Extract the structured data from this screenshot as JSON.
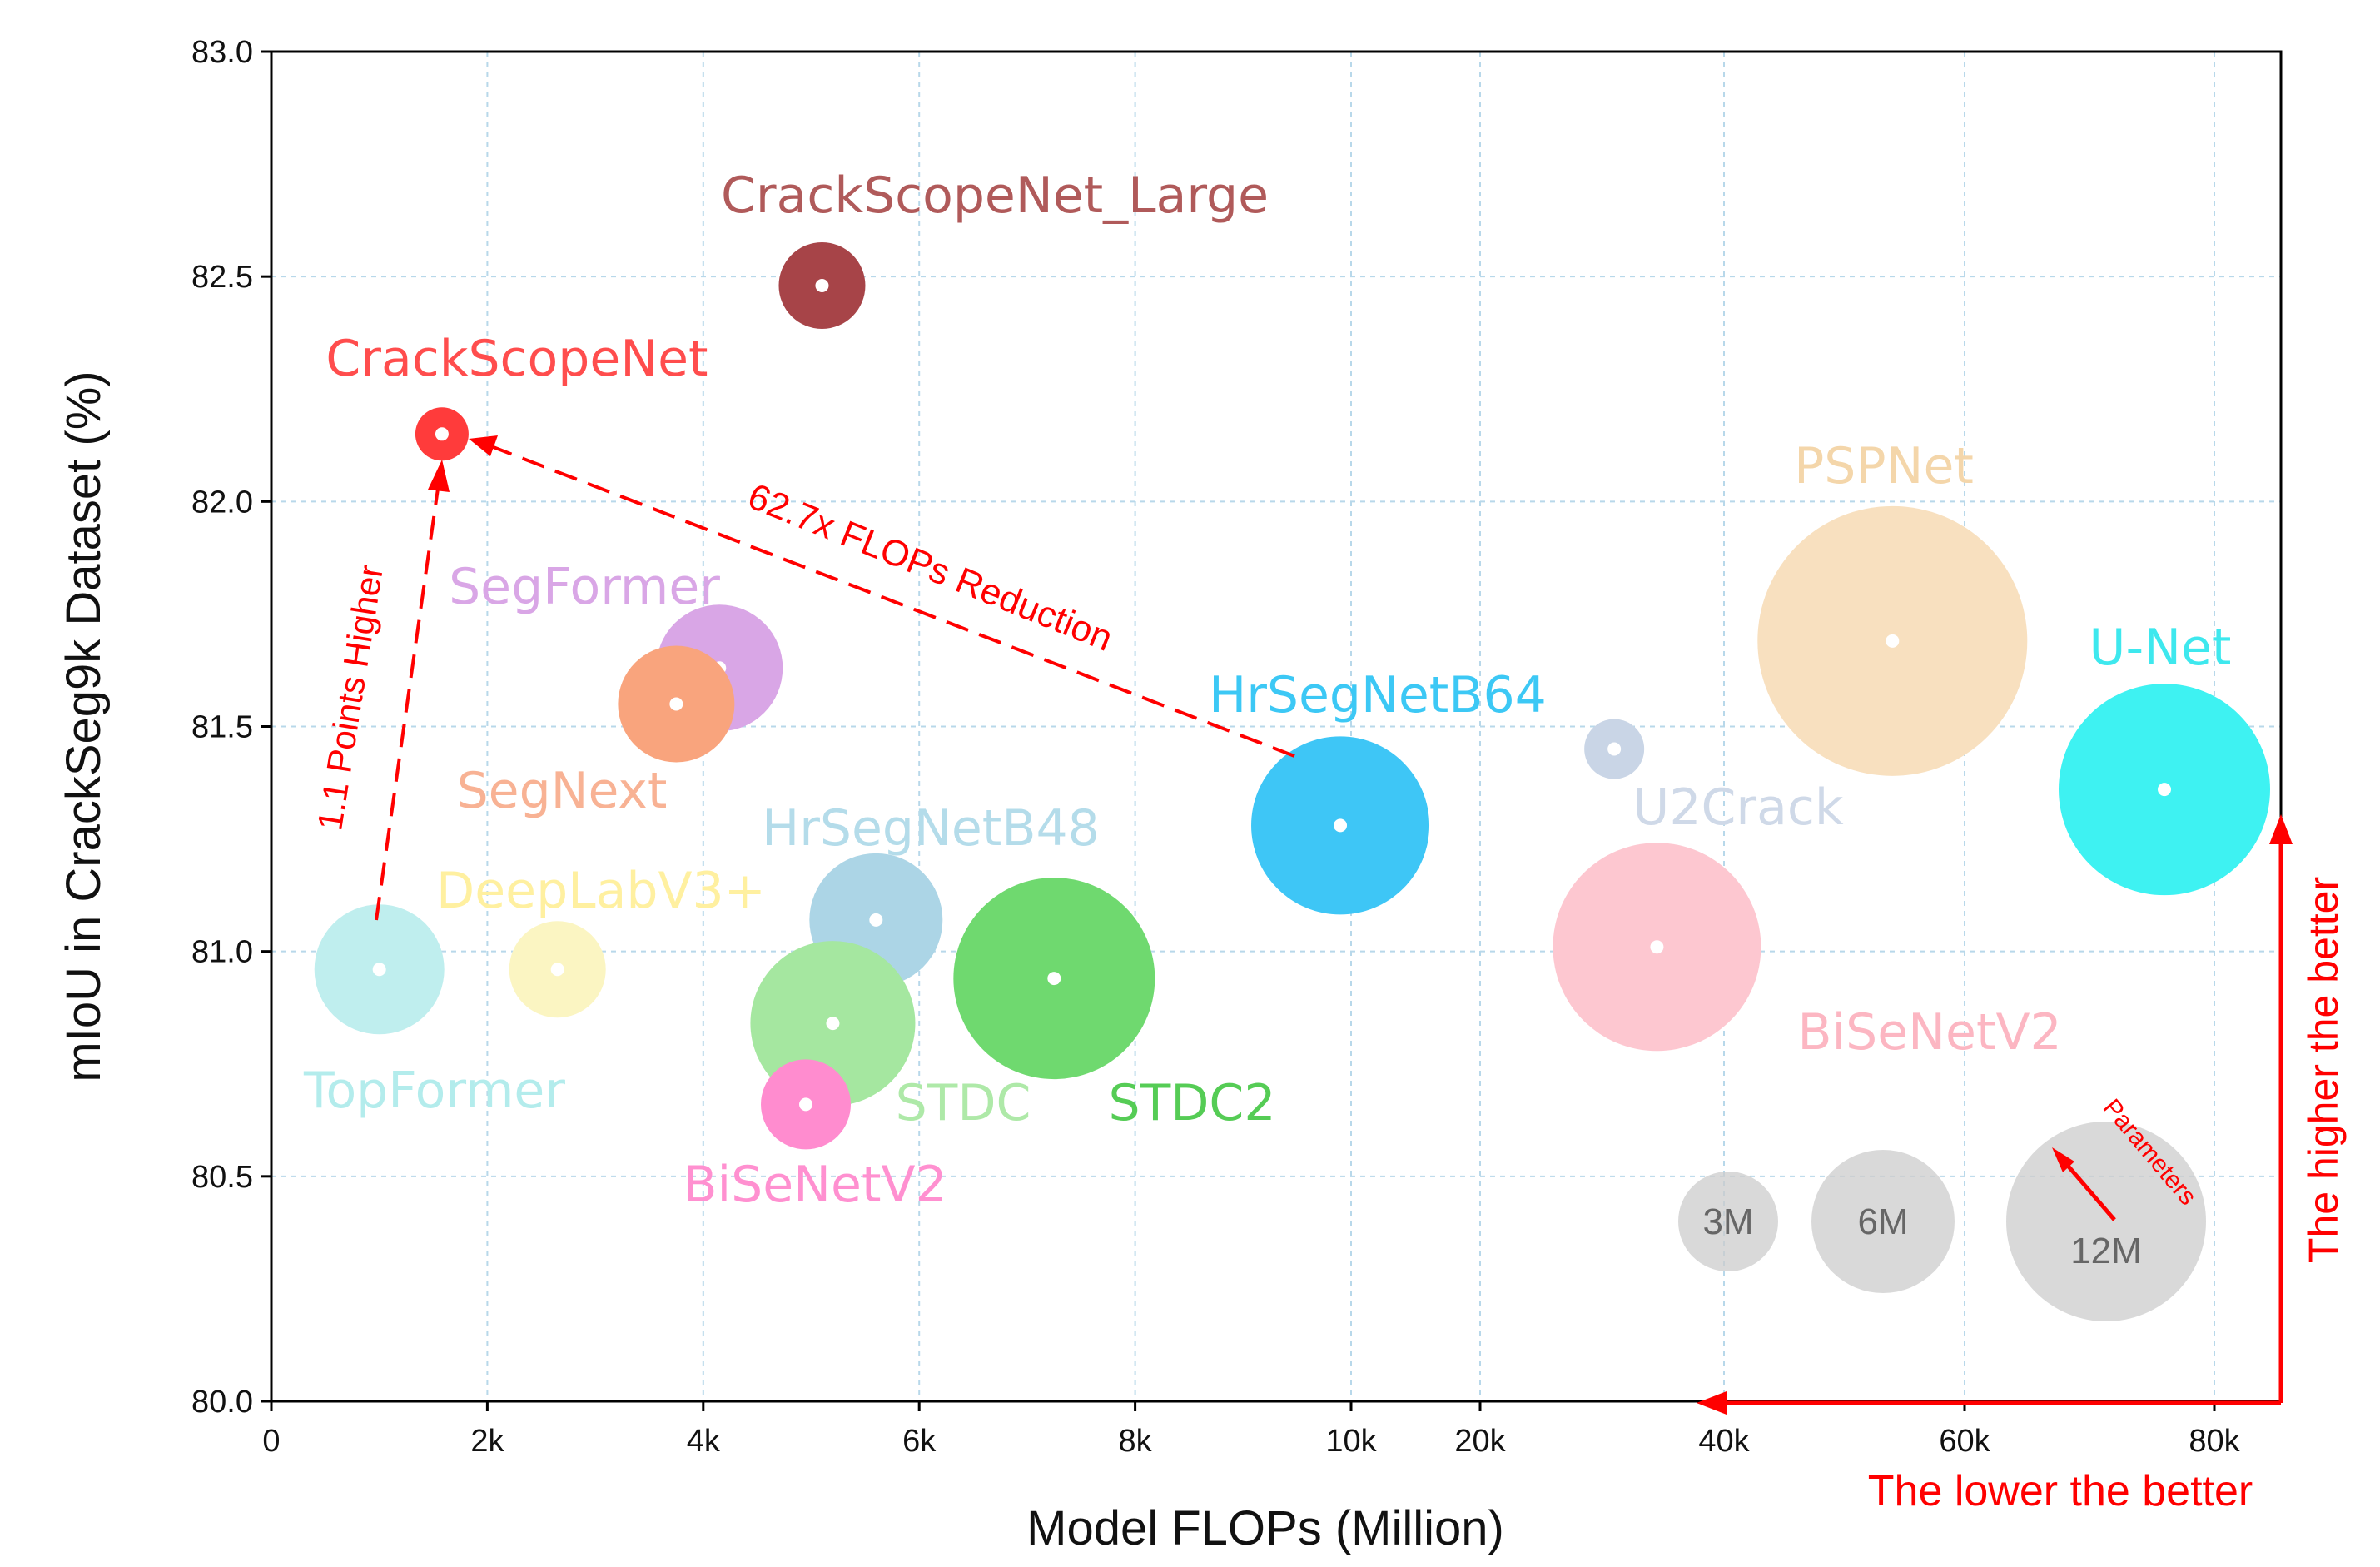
{
  "chart_data": {
    "type": "scatter",
    "subtype": "bubble",
    "xlabel": "Model FLOPs (Million)",
    "ylabel": "mIoU  in  CrackSeg9k  Dataset  (%)",
    "ylim": [
      80.0,
      83.0
    ],
    "y_ticks": [
      "80.0",
      "80.5",
      "81.0",
      "81.5",
      "82.0",
      "82.5",
      "83.0"
    ],
    "x_axis_note": "broken scale: 0–10k linear, then 10k–80k compressed",
    "x_ticks": [
      {
        "value": 0,
        "label": "0"
      },
      {
        "value": 2000,
        "label": "2k"
      },
      {
        "value": 4000,
        "label": "4k"
      },
      {
        "value": 6000,
        "label": "6k"
      },
      {
        "value": 8000,
        "label": "8k"
      },
      {
        "value": 10000,
        "label": "10k"
      },
      {
        "value": 20000,
        "label": "20k"
      },
      {
        "value": 40000,
        "label": "40k"
      },
      {
        "value": 60000,
        "label": "60k"
      },
      {
        "value": 80000,
        "label": "80k"
      }
    ],
    "grid": true,
    "points": [
      {
        "name": "CrackScopeNet_Large",
        "flops": 5100,
        "miou": 82.48,
        "params": 1.2,
        "color": "#a74448",
        "label_color": "#b05a5a",
        "label_pos": "above"
      },
      {
        "name": "CrackScopeNet",
        "flops": 1580,
        "miou": 82.15,
        "params": 0.4,
        "color": "#ff3b3b",
        "label_color": "#ff4d4d",
        "label_pos": "above"
      },
      {
        "name": "SegFormer",
        "flops": 4150,
        "miou": 81.63,
        "params": 1.5,
        "color": "#d9a6e6",
        "label_color": "#d9a6e6",
        "label_pos": "above-left"
      },
      {
        "name": "SegNext",
        "flops": 3750,
        "miou": 81.55,
        "params": 1.8,
        "color": "#f9a47d",
        "label_color": "#f8b294",
        "label_pos": "below-left"
      },
      {
        "name": "HrSegNetB64",
        "flops": 9900,
        "miou": 81.28,
        "params": 4.5,
        "color": "#3ec6f6",
        "label_color": "#3cc8f5",
        "label_pos": "above"
      },
      {
        "name": "HrSegNetB48",
        "flops": 5600,
        "miou": 81.07,
        "params": 2.4,
        "color": "#acd5e6",
        "label_color": "#b4dcea",
        "label_pos": "above"
      },
      {
        "name": "DeepLabV3+",
        "flops": 2650,
        "miou": 80.96,
        "params": 1.0,
        "color": "#fbf5c2",
        "label_color": "#fff0a0",
        "label_pos": "above"
      },
      {
        "name": "TopFormer",
        "flops": 1000,
        "miou": 80.96,
        "params": 2.3,
        "color": "#bfeeee",
        "label_color": "#b3ecec",
        "label_pos": "below"
      },
      {
        "name": "STDC",
        "flops": 5200,
        "miou": 80.84,
        "params": 3.6,
        "color": "#a5e7a0",
        "label_color": "#aee9a8",
        "label_pos": "below-right"
      },
      {
        "name": "STDC2",
        "flops": 7250,
        "miou": 80.94,
        "params": 5.6,
        "color": "#6fd96f",
        "label_color": "#55cc55",
        "label_pos": "below-right"
      },
      {
        "name": "BiSeNetV2",
        "flops": 4950,
        "miou": 80.66,
        "params": 0.9,
        "color": "#ff8ccf",
        "label_color": "#ff90d0",
        "label_pos": "below"
      },
      {
        "name": "U2Crack",
        "flops": 31000,
        "miou": 81.45,
        "params": 0.4,
        "color": "#c9d5e6",
        "label_color": "#cfd9e8",
        "label_pos": "below-right"
      },
      {
        "name": "BiSeNetV2",
        "flops": 34500,
        "miou": 81.01,
        "params": 6.0,
        "color": "#fdc7d0",
        "label_color": "#fcb6c2",
        "label_pos": "below-right"
      },
      {
        "name": "PSPNet",
        "flops": 54000,
        "miou": 81.69,
        "params": 9.0,
        "color": "#f8e0bf",
        "label_color": "#f4d6aa",
        "label_pos": "above"
      },
      {
        "name": "U-Net",
        "flops": 76000,
        "miou": 81.36,
        "params": 6.2,
        "color": "#3ef2f2",
        "label_color": "#3ee8ee",
        "label_pos": "above"
      }
    ],
    "size_legend": [
      {
        "label": "3M",
        "params": 3,
        "flops_pos": 40500,
        "miou_pos": 80.4
      },
      {
        "label": "6M",
        "params": 6,
        "flops_pos": 53000,
        "miou_pos": 80.4
      },
      {
        "label": "12M",
        "params": 12,
        "flops_pos": 71500,
        "miou_pos": 80.4
      }
    ],
    "legend_title": "Parameters",
    "legend_color": "#cccccc",
    "annotations": {
      "higher": "1.1 Points Higher",
      "reduction": "62.7x  FLOPs Reduction",
      "higher_better": "The higher the better",
      "lower_better": "The lower the better",
      "color": "#ff0000"
    }
  }
}
